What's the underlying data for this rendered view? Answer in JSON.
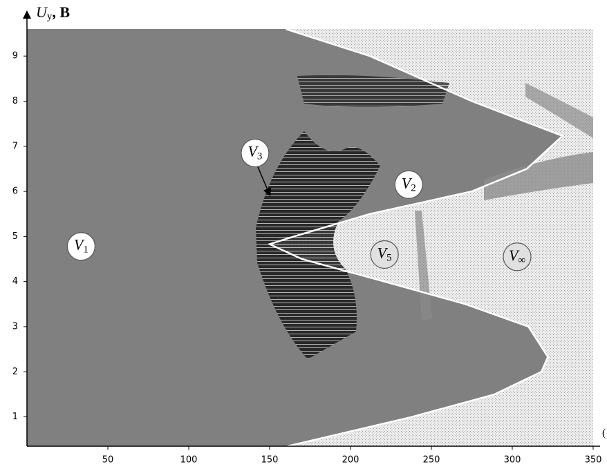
{
  "chart_data": {
    "type": "region-map",
    "y_label": {
      "main": "U",
      "sub": "y",
      "rest": ", В"
    },
    "x_label": "(",
    "xlim": [
      0,
      350
    ],
    "ylim": [
      0.35,
      9.6
    ],
    "xticks": [
      50,
      100,
      150,
      200,
      250,
      300,
      350
    ],
    "yticks": [
      1,
      2,
      3,
      4,
      5,
      6,
      7,
      8,
      9
    ],
    "background_color": "#808080",
    "outside_color": "#e4e4e4",
    "boundary": {
      "color": "#ffffff",
      "x": [
        160,
        212,
        275,
        331,
        309,
        275,
        212,
        165,
        150,
        170,
        221,
        271,
        310,
        322,
        318,
        289,
        238,
        161
      ],
      "y": [
        9.6,
        9,
        8,
        7.23,
        6.5,
        6,
        5.5,
        5,
        4.83,
        4.5,
        4,
        3.5,
        3,
        2.33,
        2,
        1.5,
        1,
        0.35
      ]
    },
    "regions": [
      {
        "name": "V",
        "sub": "1",
        "x": 33.5,
        "y": 4.78,
        "fill": "#ffffff"
      },
      {
        "name": "V",
        "sub": "2",
        "x": 236,
        "y": 6.15,
        "fill": "#ffffff"
      },
      {
        "name": "V",
        "sub": "3",
        "x": 141,
        "y": 6.85,
        "fill": "#ffffff",
        "arrow_to": {
          "x": 150,
          "y": 5.93
        }
      },
      {
        "name": "V",
        "sub": "5",
        "x": 221,
        "y": 4.6,
        "fill": "#e0e0e0"
      },
      {
        "name": "V",
        "sub": "∞",
        "x": 303,
        "y": 4.55,
        "fill": "#e0e0e0"
      }
    ]
  }
}
